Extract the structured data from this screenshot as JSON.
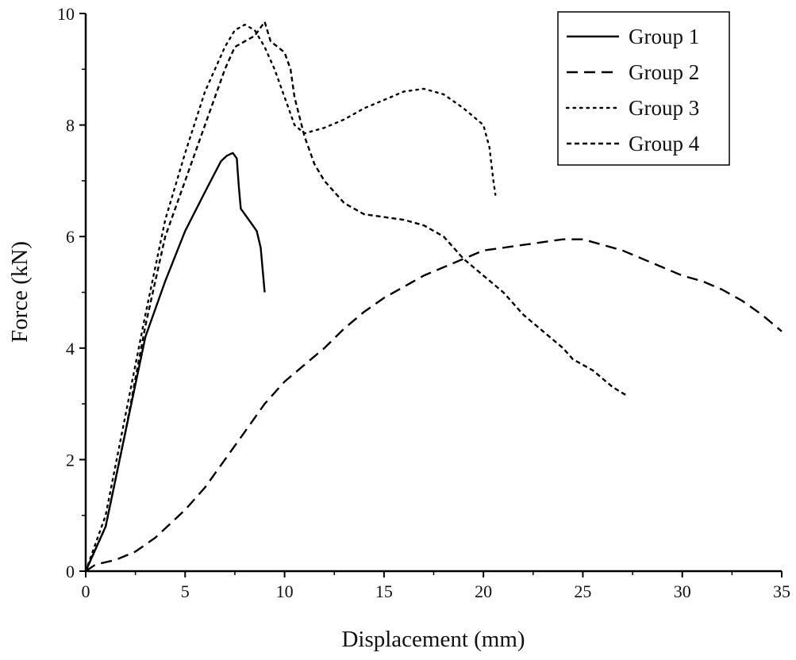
{
  "chart_data": {
    "type": "line",
    "title": "",
    "xlabel": "Displacement (mm)",
    "ylabel": "Force (kN)",
    "xlim": [
      0,
      35
    ],
    "ylim": [
      0,
      10
    ],
    "xticks": [
      0,
      5,
      10,
      15,
      20,
      25,
      30,
      35
    ],
    "yticks": [
      0,
      2,
      4,
      6,
      8,
      10
    ],
    "grid": false,
    "legend_placement": "top-right",
    "series": [
      {
        "name": "Group 1",
        "style": "solid",
        "color": "#000000",
        "x": [
          0,
          1,
          2,
          3,
          4,
          5,
          6,
          6.8,
          7.1,
          7.4,
          7.6,
          7.7,
          7.8,
          8.2,
          8.6,
          8.8,
          9.0
        ],
        "y": [
          0,
          0.8,
          2.5,
          4.2,
          5.2,
          6.1,
          6.8,
          7.35,
          7.45,
          7.5,
          7.4,
          6.9,
          6.5,
          6.3,
          6.1,
          5.8,
          5.0
        ]
      },
      {
        "name": "Group 2",
        "style": "long-dash",
        "color": "#000000",
        "x": [
          0,
          0.5,
          1.5,
          2.5,
          3.5,
          5,
          6,
          7,
          8,
          9,
          10,
          11,
          12,
          13,
          14,
          15,
          16,
          17,
          18,
          19,
          20,
          21,
          22,
          23,
          24,
          25,
          26,
          27,
          28,
          29,
          30,
          31,
          32,
          33,
          34,
          35
        ],
        "y": [
          0,
          0.12,
          0.2,
          0.35,
          0.6,
          1.1,
          1.5,
          2.0,
          2.5,
          3.0,
          3.4,
          3.7,
          4.0,
          4.35,
          4.65,
          4.9,
          5.1,
          5.3,
          5.45,
          5.6,
          5.75,
          5.8,
          5.85,
          5.9,
          5.95,
          5.95,
          5.85,
          5.75,
          5.6,
          5.45,
          5.3,
          5.2,
          5.05,
          4.85,
          4.6,
          4.3
        ]
      },
      {
        "name": "Group 3",
        "style": "dotted",
        "color": "#000000",
        "x": [
          0,
          1,
          2,
          3,
          4,
          5,
          6,
          7,
          7.5,
          8,
          8.5,
          9,
          9.5,
          10,
          10.5,
          11,
          12,
          13,
          14,
          15,
          16,
          17,
          18,
          19,
          20,
          20.3,
          20.5,
          20.6
        ],
        "y": [
          0,
          1,
          2.8,
          4.6,
          6.3,
          7.5,
          8.6,
          9.4,
          9.7,
          9.8,
          9.7,
          9.4,
          9.0,
          8.5,
          8.0,
          7.85,
          7.95,
          8.1,
          8.3,
          8.45,
          8.6,
          8.65,
          8.55,
          8.3,
          8.0,
          7.6,
          7.0,
          6.75
        ]
      },
      {
        "name": "Group 4",
        "style": "short-dash",
        "color": "#000000",
        "x": [
          0,
          1,
          2,
          3,
          4,
          5,
          6,
          7,
          7.5,
          8,
          8.5,
          9,
          9.3,
          10,
          10.3,
          10.5,
          11,
          11.5,
          12,
          13,
          14,
          15,
          16,
          17,
          18,
          19,
          20,
          21,
          22,
          23,
          24,
          24.5,
          25.5,
          26.5,
          27.2
        ],
        "y": [
          0,
          0.8,
          2.5,
          4.4,
          6.0,
          7.0,
          8.0,
          9.0,
          9.4,
          9.5,
          9.6,
          9.85,
          9.5,
          9.3,
          9.0,
          8.5,
          7.8,
          7.3,
          7.0,
          6.6,
          6.4,
          6.35,
          6.3,
          6.2,
          6.0,
          5.6,
          5.3,
          5.0,
          4.6,
          4.3,
          4.0,
          3.8,
          3.6,
          3.3,
          3.15
        ]
      }
    ]
  }
}
